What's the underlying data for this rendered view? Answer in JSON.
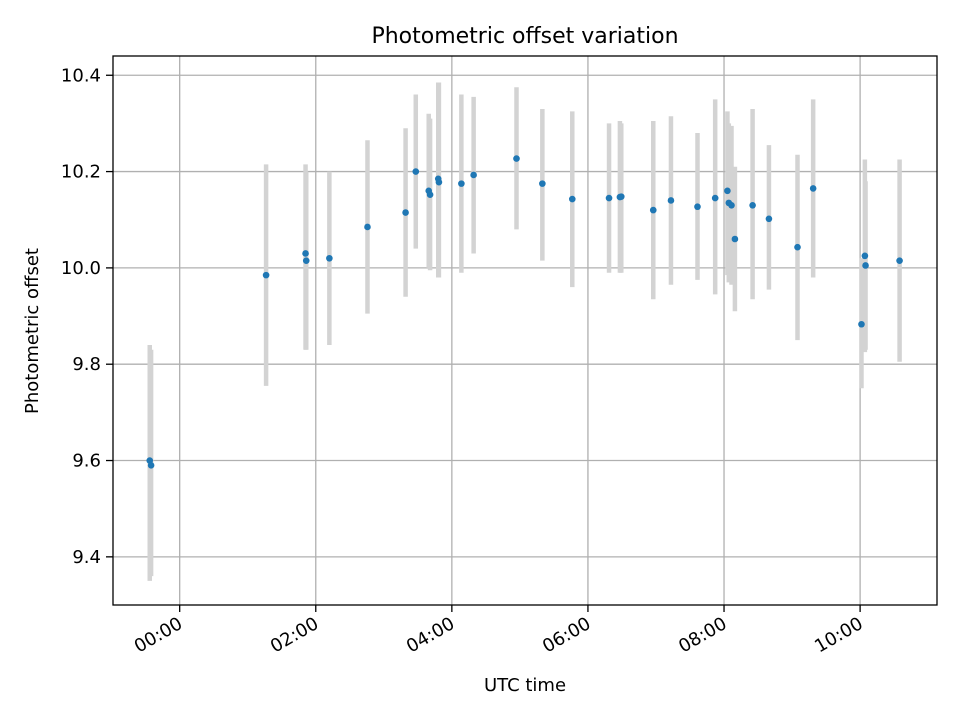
{
  "chart_data": {
    "type": "scatter",
    "title": "Photometric offset variation",
    "xlabel": "UTC time",
    "ylabel": "Photometric offset",
    "x_unit": "hours",
    "xlim": [
      -0.98,
      11.13
    ],
    "ylim": [
      9.3,
      10.44
    ],
    "grid": true,
    "x_ticks": [
      {
        "value": 0,
        "label": "00:00"
      },
      {
        "value": 2,
        "label": "02:00"
      },
      {
        "value": 4,
        "label": "04:00"
      },
      {
        "value": 6,
        "label": "06:00"
      },
      {
        "value": 8,
        "label": "08:00"
      },
      {
        "value": 10,
        "label": "10:00"
      }
    ],
    "y_ticks": [
      {
        "value": 9.4,
        "label": "9.4"
      },
      {
        "value": 9.6,
        "label": "9.6"
      },
      {
        "value": 9.8,
        "label": "9.8"
      },
      {
        "value": 10.0,
        "label": "10.0"
      },
      {
        "value": 10.2,
        "label": "10.2"
      },
      {
        "value": 10.4,
        "label": "10.4"
      }
    ],
    "point_color": "#1f77b4",
    "errorbar_color": "#d3d3d3",
    "points": [
      {
        "x": -0.44,
        "y": 9.6,
        "ylow": 9.35,
        "yhigh": 9.84
      },
      {
        "x": -0.42,
        "y": 9.59,
        "ylow": 9.36,
        "yhigh": 9.83
      },
      {
        "x": 1.27,
        "y": 9.985,
        "ylow": 9.755,
        "yhigh": 10.215
      },
      {
        "x": 1.85,
        "y": 10.03,
        "ylow": 9.83,
        "yhigh": 10.215
      },
      {
        "x": 1.86,
        "y": 10.015,
        "ylow": 9.83,
        "yhigh": 10.2
      },
      {
        "x": 2.2,
        "y": 10.02,
        "ylow": 9.84,
        "yhigh": 10.2
      },
      {
        "x": 2.76,
        "y": 10.085,
        "ylow": 9.905,
        "yhigh": 10.265
      },
      {
        "x": 3.32,
        "y": 10.115,
        "ylow": 9.94,
        "yhigh": 10.29
      },
      {
        "x": 3.47,
        "y": 10.2,
        "ylow": 10.04,
        "yhigh": 10.36
      },
      {
        "x": 3.66,
        "y": 10.16,
        "ylow": 10.0,
        "yhigh": 10.32
      },
      {
        "x": 3.68,
        "y": 10.152,
        "ylow": 9.995,
        "yhigh": 10.31
      },
      {
        "x": 3.8,
        "y": 10.185,
        "ylow": 9.98,
        "yhigh": 10.385
      },
      {
        "x": 3.81,
        "y": 10.178,
        "ylow": 9.98,
        "yhigh": 10.385
      },
      {
        "x": 4.14,
        "y": 10.175,
        "ylow": 9.99,
        "yhigh": 10.36
      },
      {
        "x": 4.32,
        "y": 10.193,
        "ylow": 10.03,
        "yhigh": 10.355
      },
      {
        "x": 4.95,
        "y": 10.227,
        "ylow": 10.08,
        "yhigh": 10.375
      },
      {
        "x": 5.33,
        "y": 10.175,
        "ylow": 10.015,
        "yhigh": 10.33
      },
      {
        "x": 5.77,
        "y": 10.143,
        "ylow": 9.96,
        "yhigh": 10.325
      },
      {
        "x": 6.31,
        "y": 10.145,
        "ylow": 9.99,
        "yhigh": 10.3
      },
      {
        "x": 6.47,
        "y": 10.147,
        "ylow": 9.99,
        "yhigh": 10.305
      },
      {
        "x": 6.49,
        "y": 10.148,
        "ylow": 9.99,
        "yhigh": 10.3
      },
      {
        "x": 6.96,
        "y": 10.12,
        "ylow": 9.935,
        "yhigh": 10.305
      },
      {
        "x": 7.22,
        "y": 10.14,
        "ylow": 9.965,
        "yhigh": 10.315
      },
      {
        "x": 7.61,
        "y": 10.127,
        "ylow": 9.975,
        "yhigh": 10.28
      },
      {
        "x": 7.87,
        "y": 10.145,
        "ylow": 9.945,
        "yhigh": 10.35
      },
      {
        "x": 8.05,
        "y": 10.16,
        "ylow": 9.985,
        "yhigh": 10.325
      },
      {
        "x": 8.07,
        "y": 10.135,
        "ylow": 9.97,
        "yhigh": 10.3
      },
      {
        "x": 8.11,
        "y": 10.13,
        "ylow": 9.965,
        "yhigh": 10.295
      },
      {
        "x": 8.16,
        "y": 10.06,
        "ylow": 9.91,
        "yhigh": 10.21
      },
      {
        "x": 8.42,
        "y": 10.13,
        "ylow": 9.935,
        "yhigh": 10.33
      },
      {
        "x": 8.66,
        "y": 10.102,
        "ylow": 9.955,
        "yhigh": 10.255
      },
      {
        "x": 9.08,
        "y": 10.043,
        "ylow": 9.85,
        "yhigh": 10.235
      },
      {
        "x": 9.31,
        "y": 10.165,
        "ylow": 9.98,
        "yhigh": 10.35
      },
      {
        "x": 10.02,
        "y": 9.883,
        "ylow": 9.75,
        "yhigh": 10.02
      },
      {
        "x": 10.07,
        "y": 10.025,
        "ylow": 9.825,
        "yhigh": 10.225
      },
      {
        "x": 10.08,
        "y": 10.005,
        "ylow": 9.83,
        "yhigh": 10.18
      },
      {
        "x": 10.58,
        "y": 10.015,
        "ylow": 9.805,
        "yhigh": 10.225
      }
    ]
  }
}
